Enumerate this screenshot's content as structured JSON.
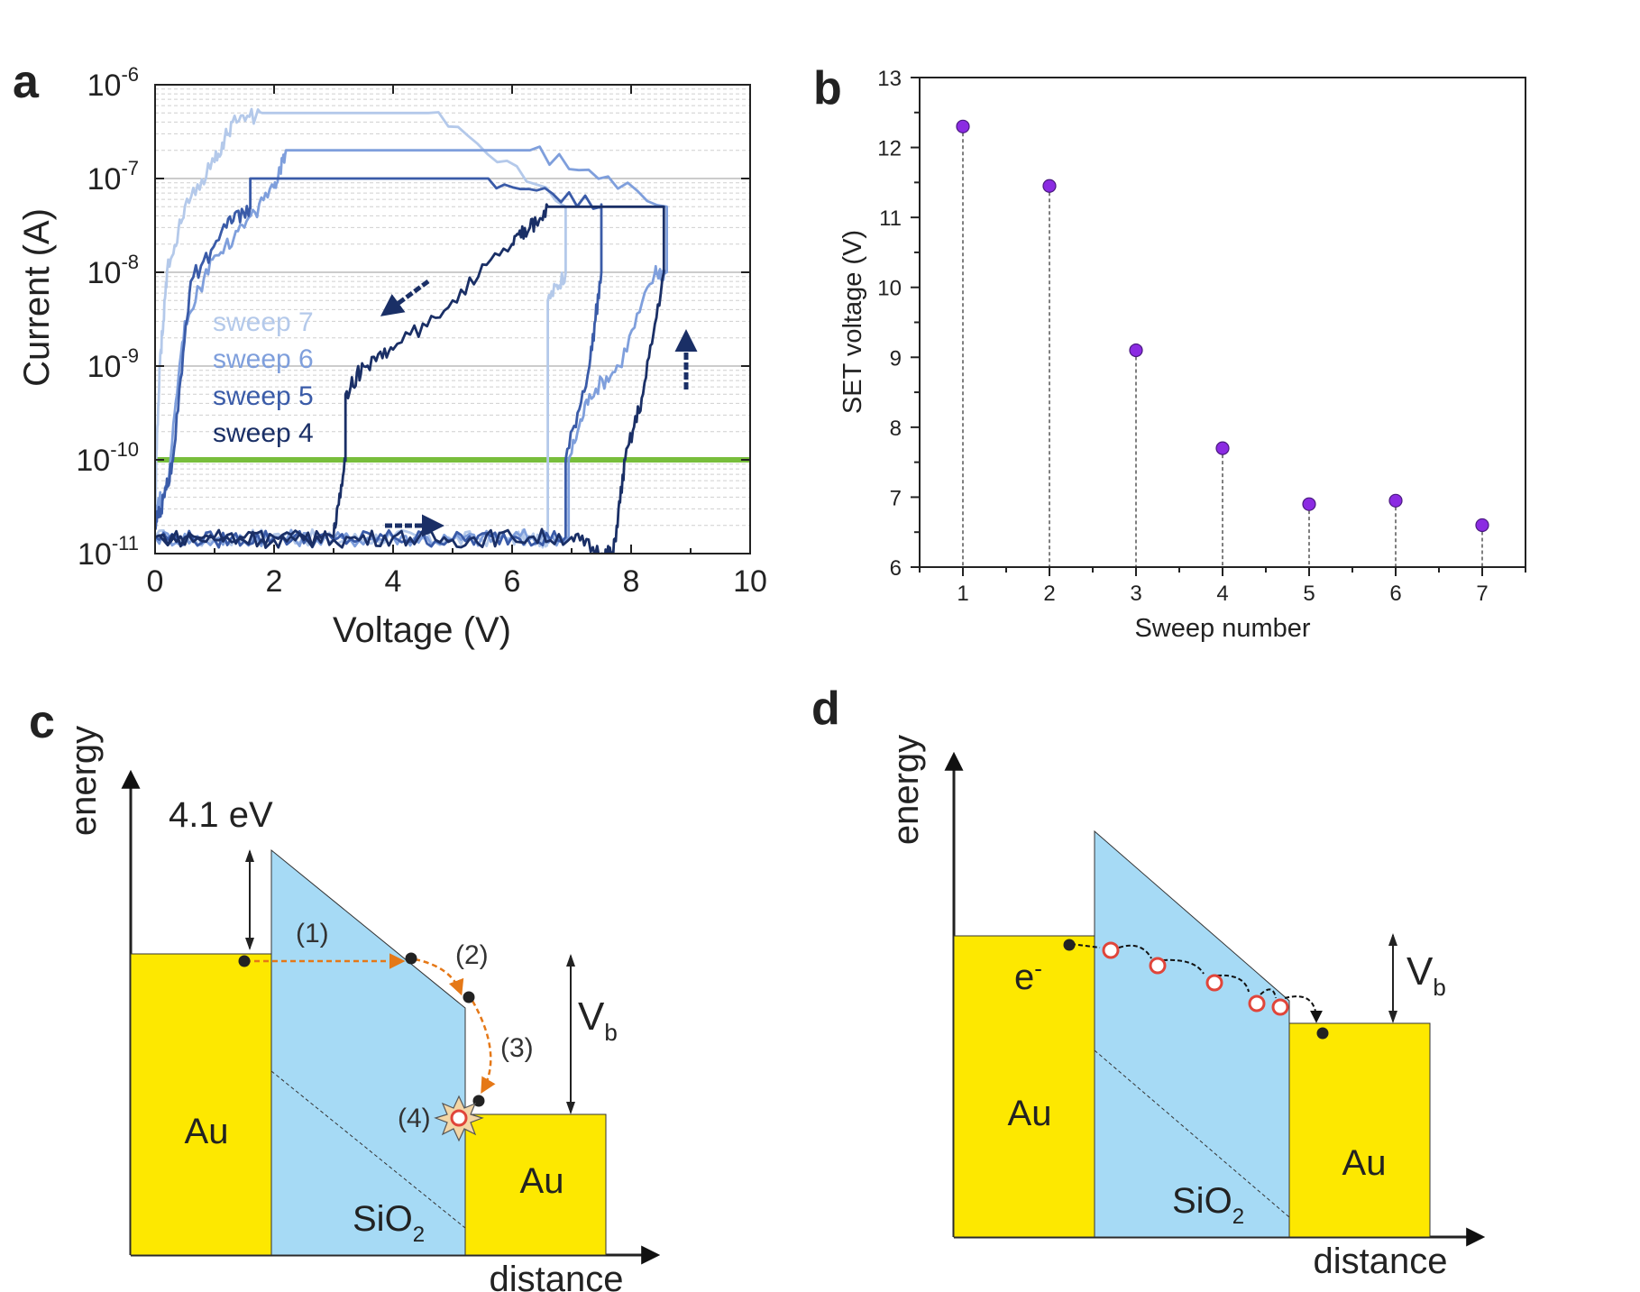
{
  "panels": {
    "a": {
      "label": "a"
    },
    "b": {
      "label": "b"
    },
    "c": {
      "label": "c"
    },
    "d": {
      "label": "d"
    }
  },
  "colors": {
    "sweep7": "#b4c9ea",
    "sweep6": "#7f9fdc",
    "sweep5": "#3a5ba8",
    "sweep4": "#1a2f66",
    "threshold": "#78be3c",
    "marker": "#8b2be2",
    "gold": "#fde800",
    "oxide": "#a6daf5",
    "orange": "#e57817"
  },
  "chart_data": [
    {
      "type": "line",
      "yscale": "log",
      "xlabel": "Voltage (V)",
      "ylabel": "Current (A)",
      "xlim": [
        0,
        10
      ],
      "ylim": [
        1e-11,
        1e-06
      ],
      "xticks": [
        "0",
        "2",
        "4",
        "6",
        "8",
        "10"
      ],
      "yticks": [
        {
          "base": "10",
          "exp": "-11"
        },
        {
          "base": "10",
          "exp": "-10"
        },
        {
          "base": "10",
          "exp": "-9"
        },
        {
          "base": "10",
          "exp": "-8"
        },
        {
          "base": "10",
          "exp": "-7"
        },
        {
          "base": "10",
          "exp": "-6"
        }
      ],
      "threshold": {
        "y": 1e-10
      },
      "legend": [
        "sweep 7",
        "sweep 6",
        "sweep 5",
        "sweep 4"
      ],
      "series": [
        {
          "name": "sweep 7",
          "compliance": 5e-07,
          "set_voltage": 6.6,
          "x": [
            0,
            1,
            2,
            3,
            4,
            5,
            6,
            6.5,
            6.6,
            6.6,
            6.9,
            6.9,
            4.6,
            1.8,
            1.3,
            1.0,
            0.5,
            0.2,
            0.08,
            0.02,
            0
          ],
          "y": [
            1.5e-11,
            1.4e-11,
            1.6e-11,
            1.4e-11,
            1.5e-11,
            1.4e-11,
            1.5e-11,
            1.4e-11,
            1.5e-11,
            5e-09,
            1e-08,
            5e-08,
            5e-07,
            5e-07,
            4e-07,
            1.5e-07,
            5e-08,
            1e-08,
            1e-09,
            1e-10,
            2e-11
          ]
        },
        {
          "name": "sweep 6",
          "compliance": 2e-07,
          "set_voltage": 6.95,
          "x": [
            0,
            1,
            2,
            3,
            4,
            5,
            6,
            6.95,
            6.95,
            7.3,
            7.8,
            8.4,
            8.6,
            8.6,
            6.3,
            2.2,
            2.0,
            1.5,
            1.0,
            0.5,
            0.2,
            0
          ],
          "y": [
            1.5e-11,
            1.4e-11,
            1.5e-11,
            1.4e-11,
            1.5e-11,
            1.4e-11,
            1.5e-11,
            1.5e-11,
            1e-10,
            5e-10,
            1e-09,
            1e-08,
            1e-08,
            5e-08,
            2e-07,
            2e-07,
            8e-08,
            3e-08,
            1.5e-08,
            3e-09,
            5e-11,
            3e-11
          ]
        },
        {
          "name": "sweep 5",
          "compliance": 1e-07,
          "set_voltage": 6.9,
          "x": [
            0,
            1,
            2,
            3,
            4,
            5,
            6,
            6.9,
            6.9,
            7.3,
            7.5,
            7.5,
            5.6,
            1.6,
            1.6,
            1.2,
            0.6,
            0.3,
            0.1,
            0
          ],
          "y": [
            1.5e-11,
            1.4e-11,
            1.5e-11,
            1.4e-11,
            1.5e-11,
            1.4e-11,
            1.5e-11,
            1.5e-11,
            1e-10,
            1e-09,
            1e-08,
            5e-08,
            1e-07,
            1e-07,
            5e-08,
            3e-08,
            8e-09,
            1e-10,
            3e-11,
            2e-11
          ]
        },
        {
          "name": "sweep 4",
          "compliance": 5e-08,
          "set_voltage": 7.7,
          "x": [
            0,
            1,
            2,
            3,
            4,
            5,
            6,
            7,
            7.5,
            7.7,
            7.9,
            8.2,
            8.55,
            8.55,
            6.6,
            6.3,
            6.0,
            5.0,
            4.0,
            3.5,
            3.2,
            3.2,
            3.0,
            2.0,
            1.0,
            0
          ],
          "y": [
            1.5e-11,
            1.4e-11,
            1.5e-11,
            1.4e-11,
            1.5e-11,
            1.4e-11,
            1.5e-11,
            1.5e-11,
            1e-11,
            1e-11,
            1e-10,
            5e-10,
            1e-08,
            5e-08,
            5e-08,
            3e-08,
            2e-08,
            5e-09,
            1.5e-09,
            1e-09,
            5e-10,
            1e-10,
            1.5e-11,
            1.4e-11,
            1.5e-11,
            1.5e-11
          ]
        }
      ]
    },
    {
      "type": "scatter",
      "xlabel": "Sweep number",
      "ylabel": "SET voltage (V)",
      "xlim": [
        0.5,
        7.5
      ],
      "ylim": [
        6,
        13
      ],
      "xticks": [
        "1",
        "2",
        "3",
        "4",
        "5",
        "6",
        "7"
      ],
      "yticks": [
        "6",
        "7",
        "8",
        "9",
        "10",
        "11",
        "12",
        "13"
      ],
      "x": [
        1,
        2,
        3,
        4,
        5,
        6,
        7
      ],
      "values": [
        12.3,
        11.45,
        9.1,
        7.7,
        6.9,
        6.95,
        6.6
      ]
    }
  ],
  "diagram_c": {
    "energy_label": "energy",
    "distance_label": "distance",
    "barrier": "4.1 eV",
    "vb": {
      "main": "V",
      "sub": "b"
    },
    "metal_left": "Au",
    "metal_right": "Au",
    "oxide": {
      "main": "SiO",
      "sub": "2"
    },
    "steps": [
      "(1)",
      "(2)",
      "(3)",
      "(4)"
    ]
  },
  "diagram_d": {
    "energy_label": "energy",
    "distance_label": "distance",
    "vb": {
      "main": "V",
      "sub": "b"
    },
    "metal_left": "Au",
    "metal_right": "Au",
    "oxide": {
      "main": "SiO",
      "sub": "2"
    },
    "electron": {
      "main": "e",
      "sup": "-"
    }
  }
}
